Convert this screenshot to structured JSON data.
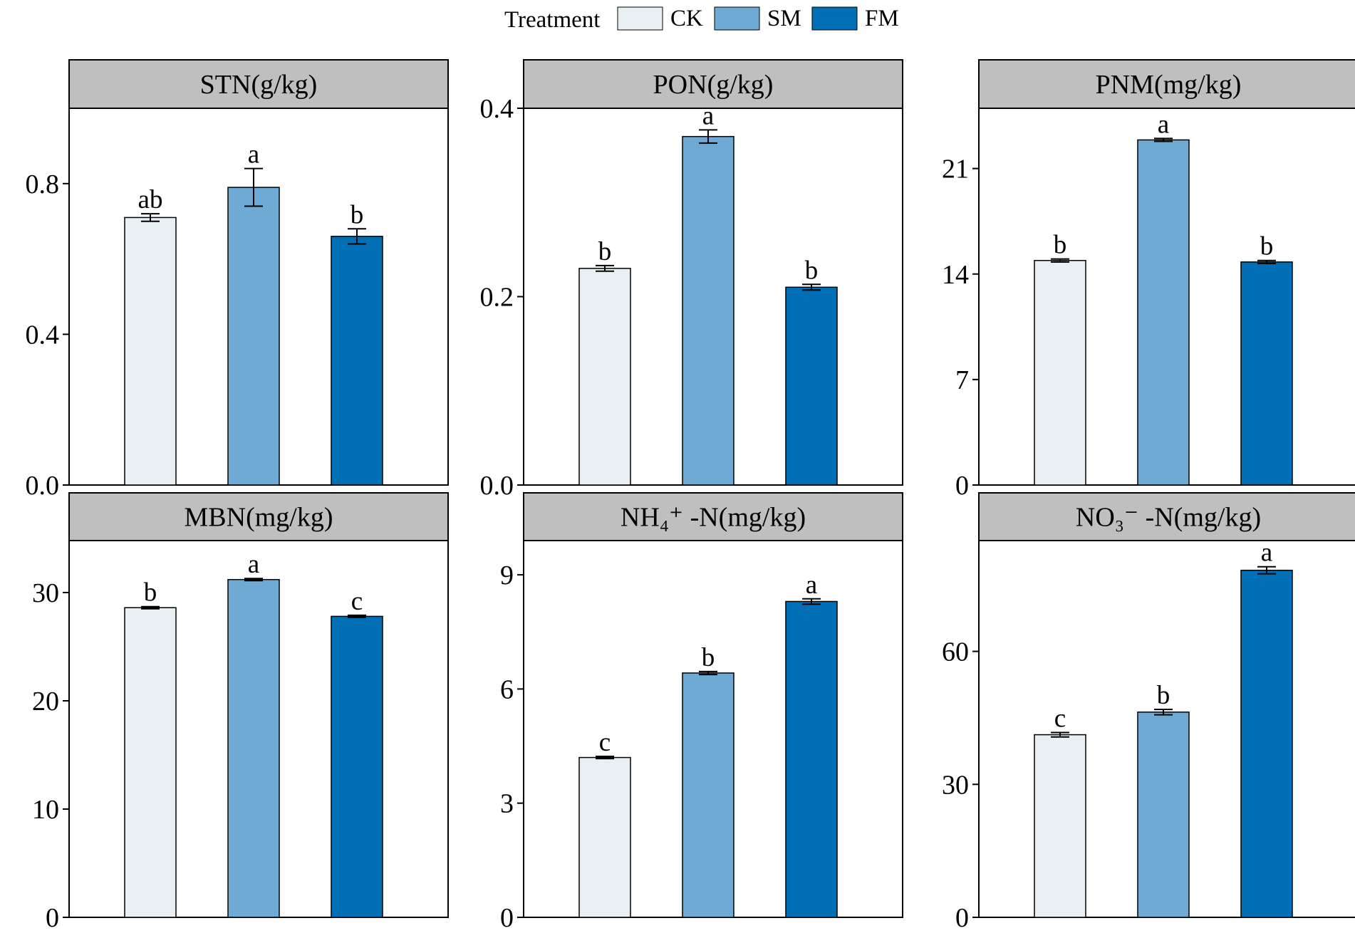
{
  "legend": {
    "title": "Treatment",
    "entries": [
      {
        "label": "CK",
        "color": "#e8f0f3"
      },
      {
        "label": "SM",
        "color": "#6eaad3"
      },
      {
        "label": "FM",
        "color": "#006fb5"
      }
    ]
  },
  "chart_data": [
    {
      "type": "bar",
      "title": "STN(g/kg)",
      "categories": [
        "CK",
        "SM",
        "FM"
      ],
      "values": [
        0.71,
        0.79,
        0.66
      ],
      "errors": [
        0.01,
        0.05,
        0.02
      ],
      "significance": [
        "ab",
        "a",
        "b"
      ],
      "ylim": [
        0,
        1.0
      ],
      "yticks": [
        0.0,
        0.4,
        0.8
      ],
      "ytick_labels": [
        "0.0",
        "0.4",
        "0.8"
      ]
    },
    {
      "type": "bar",
      "title": "PON(g/kg)",
      "categories": [
        "CK",
        "SM",
        "FM"
      ],
      "values": [
        0.23,
        0.37,
        0.21
      ],
      "errors": [
        0.003,
        0.007,
        0.003
      ],
      "significance": [
        "b",
        "a",
        "b"
      ],
      "ylim": [
        0,
        0.4
      ],
      "yticks": [
        0.0,
        0.2,
        0.4
      ],
      "ytick_labels": [
        "0.0",
        "0.2",
        "0.4"
      ]
    },
    {
      "type": "bar",
      "title": "PNM(mg/kg)",
      "categories": [
        "CK",
        "SM",
        "FM"
      ],
      "values": [
        14.9,
        22.9,
        14.8
      ],
      "errors": [
        0.1,
        0.1,
        0.1
      ],
      "significance": [
        "b",
        "a",
        "b"
      ],
      "ylim": [
        0,
        25
      ],
      "yticks": [
        0,
        7,
        14,
        21
      ],
      "ytick_labels": [
        "0",
        "7",
        "14",
        "21"
      ]
    },
    {
      "type": "bar",
      "title": "MBN(mg/kg)",
      "categories": [
        "CK",
        "SM",
        "FM"
      ],
      "values": [
        28.6,
        31.2,
        27.8
      ],
      "errors": [
        0.1,
        0.1,
        0.1
      ],
      "significance": [
        "b",
        "a",
        "c"
      ],
      "ylim": [
        0,
        34.8
      ],
      "yticks": [
        0,
        10,
        20,
        30
      ],
      "ytick_labels": [
        "0",
        "10",
        "20",
        "30"
      ]
    },
    {
      "type": "bar",
      "title": "NH₄⁺ -N(mg/kg)",
      "categories": [
        "CK",
        "SM",
        "FM"
      ],
      "values": [
        4.2,
        6.42,
        8.3
      ],
      "errors": [
        0.03,
        0.04,
        0.07
      ],
      "significance": [
        "c",
        "b",
        "a"
      ],
      "ylim": [
        0,
        9.9
      ],
      "yticks": [
        0,
        3,
        6,
        9
      ],
      "ytick_labels": [
        "0",
        "3",
        "6",
        "9"
      ]
    },
    {
      "type": "bar",
      "title": "NO₃⁻ -N(mg/kg)",
      "categories": [
        "CK",
        "SM",
        "FM"
      ],
      "values": [
        41.2,
        46.3,
        78.3
      ],
      "errors": [
        0.5,
        0.6,
        0.8
      ],
      "significance": [
        "c",
        "b",
        "a"
      ],
      "ylim": [
        0,
        85
      ],
      "yticks": [
        0,
        30,
        60
      ],
      "ytick_labels": [
        "0",
        "30",
        "60"
      ]
    }
  ]
}
